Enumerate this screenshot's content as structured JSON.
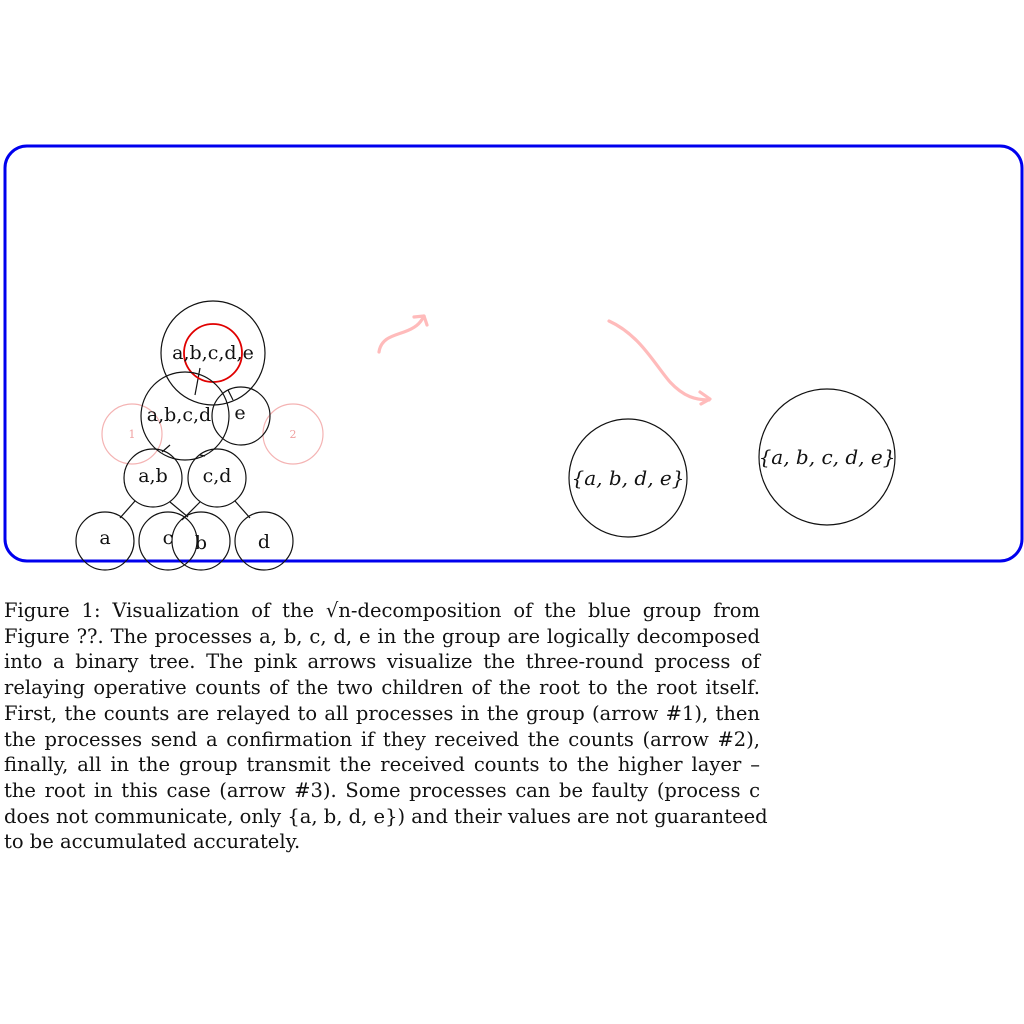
{
  "colors": {
    "group_border": "#0000ee",
    "root_highlight": "#e00000",
    "arrows": "#ffbbbb",
    "faint_circles": "#f4b3b3",
    "nodes": "#111111"
  },
  "tree": {
    "root": "a,b,c,d,e",
    "level1": [
      "a,b,c,d",
      "e"
    ],
    "level2": [
      "a,b",
      "c,d"
    ],
    "leaves": [
      "a",
      "c",
      "b",
      "d"
    ],
    "side_markers": [
      "1",
      "2"
    ]
  },
  "sets": {
    "after_faults": "{a, b, d, e}",
    "full_group": "{a, b, c, d, e}"
  },
  "caption": {
    "lines": [
      "Figure 1:  Visualization of the √n-decomposition of the blue group from",
      "Figure ??.  The processes a, b, c, d, e in the group are logically decomposed",
      "into a binary tree.  The pink arrows visualize the three-round process of",
      "relaying operative counts of the two children of the root to the root itself.",
      "First, the counts are relayed to all processes in the group (arrow #1), then",
      "the processes send a confirmation if they received the counts (arrow #2),",
      "finally, all in the group transmit the received counts to the higher layer –",
      "the root in this case (arrow #3).  Some processes can be faulty (process c",
      "does not communicate, only {a, b, d, e}) and their values are not guaranteed",
      "to be accumulated accurately."
    ]
  }
}
